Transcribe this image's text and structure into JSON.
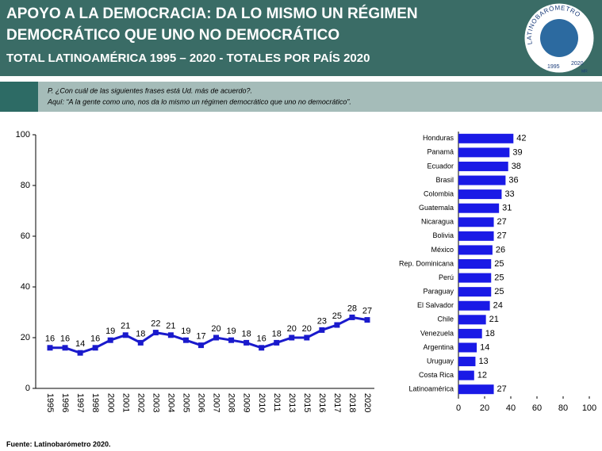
{
  "header": {
    "title_line1": "APOYO A LA DEMOCRACIA: DA LO MISMO UN RÉGIMEN",
    "title_line2": "DEMOCRÁTICO QUE UNO NO DEMOCRÁTICO",
    "subtitle": "TOTAL LATINOAMÉRICA 1995 – 2020 - TOTALES POR PAÍS 2020"
  },
  "logo": {
    "name": "LATINOBARÓMETRO",
    "start": "1995",
    "end": "2020",
    "mark": "MR"
  },
  "question": {
    "line1": "P. ¿Con cuál de las siguientes frases está Ud. más de acuerdo?.",
    "line2": "Aquí: “A la gente como uno, nos da lo mismo un régimen democrático que uno no democrático”."
  },
  "source": "Fuente: Latinobarómetro 2020.",
  "chart_data": [
    {
      "type": "line",
      "categories": [
        "1995",
        "1996",
        "1997",
        "1998",
        "2000",
        "2001",
        "2002",
        "2003",
        "2004",
        "2005",
        "2006",
        "2007",
        "2008",
        "2009",
        "2010",
        "2011",
        "2013",
        "2015",
        "2016",
        "2017",
        "2018",
        "2020"
      ],
      "values": [
        16,
        16,
        14,
        16,
        19,
        21,
        18,
        22,
        21,
        19,
        17,
        20,
        19,
        18,
        16,
        18,
        20,
        20,
        23,
        25,
        28,
        27
      ],
      "color": "#1a1acc",
      "ylim": [
        0,
        100
      ],
      "yticks": [
        0,
        20,
        40,
        60,
        80,
        100
      ]
    },
    {
      "type": "hbar",
      "categories": [
        "Honduras",
        "Panamá",
        "Ecuador",
        "Brasil",
        "Colombia",
        "Guatemala",
        "Nicaragua",
        "Bolivia",
        "México",
        "Rep. Dominicana",
        "Perú",
        "Paraguay",
        "El Salvador",
        "Chile",
        "Venezuela",
        "Argentina",
        "Uruguay",
        "Costa Rica",
        "Latinoamérica"
      ],
      "values": [
        42,
        39,
        38,
        36,
        33,
        31,
        27,
        27,
        26,
        25,
        25,
        25,
        24,
        21,
        18,
        14,
        13,
        12,
        27
      ],
      "color": "#1a1ae6",
      "xlim": [
        0,
        100
      ],
      "xticks": [
        0,
        20,
        40,
        60,
        80,
        100
      ]
    }
  ]
}
